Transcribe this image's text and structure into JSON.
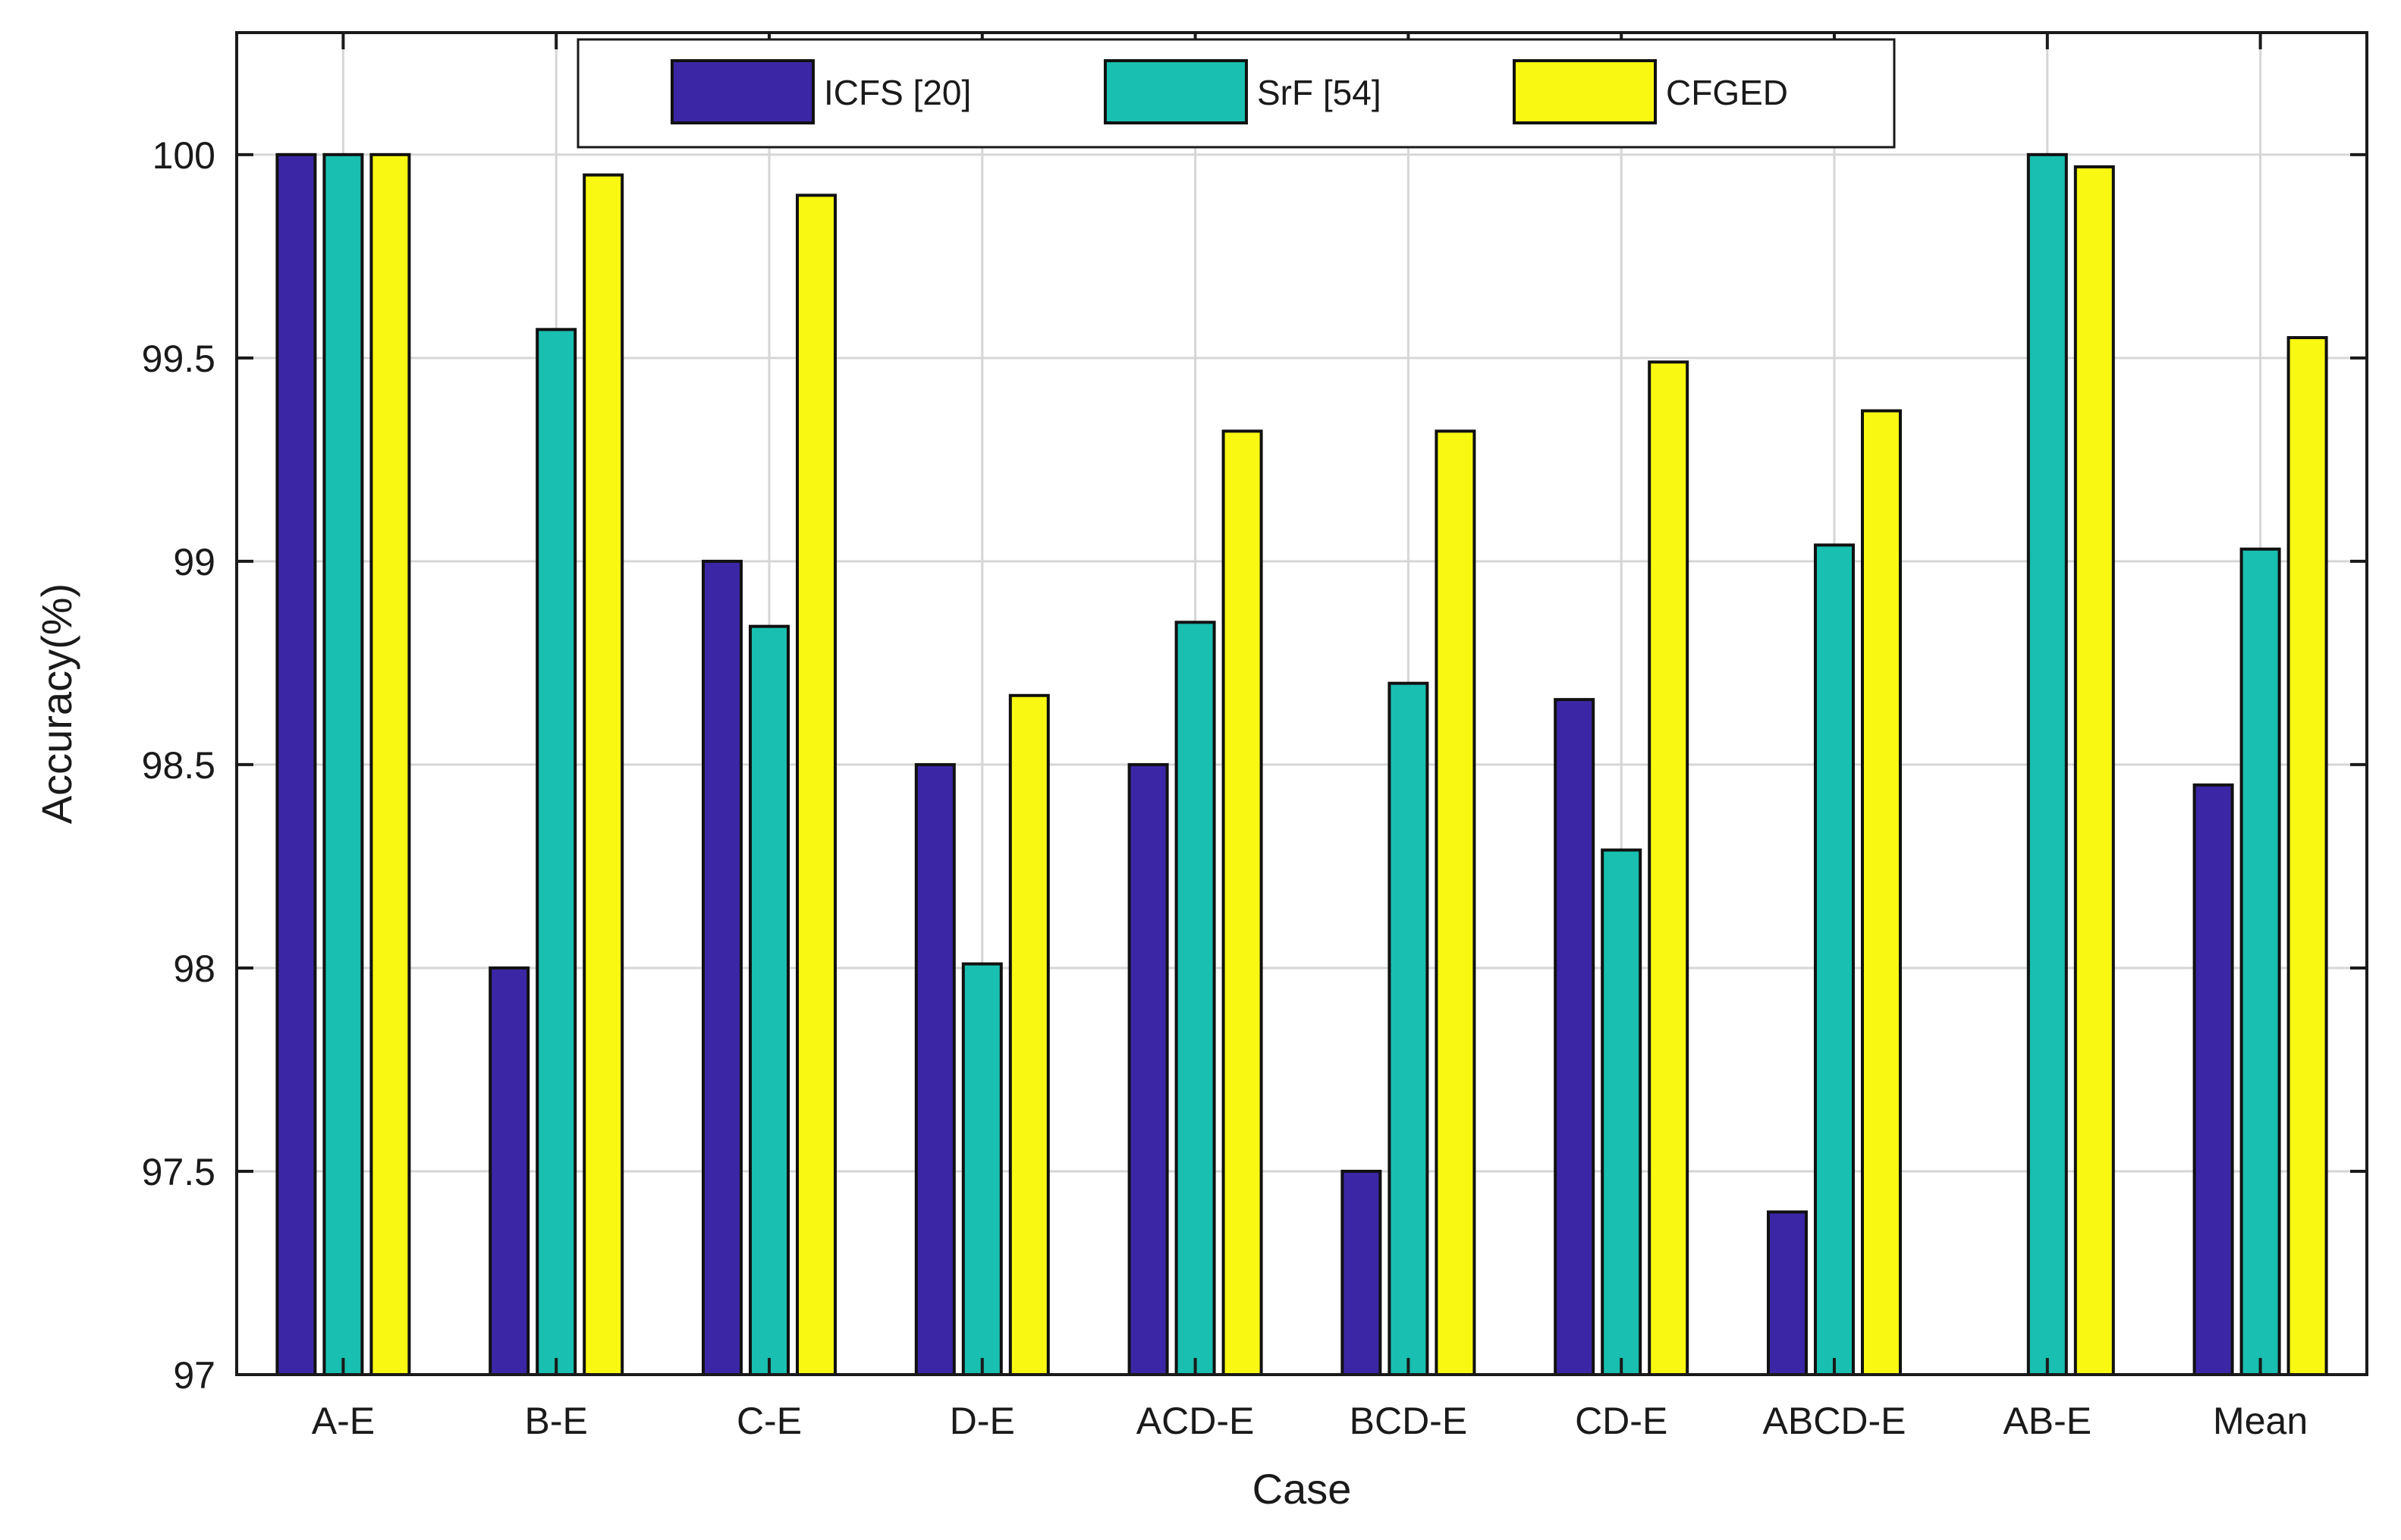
{
  "chart_data": {
    "type": "bar",
    "title": "",
    "xlabel": "Case",
    "ylabel": "Accuracy(%)",
    "ylim": [
      97,
      100.3
    ],
    "yticks": [
      "97",
      "97.5",
      "98",
      "98.5",
      "99",
      "99.5",
      "100"
    ],
    "ytick_values": [
      97,
      97.5,
      98,
      98.5,
      99,
      99.5,
      100
    ],
    "grid": true,
    "legend_position": "top",
    "categories": [
      "A-E",
      "B-E",
      "C-E",
      "D-E",
      "ACD-E",
      "BCD-E",
      "CD-E",
      "ABCD-E",
      "AB-E",
      "Mean"
    ],
    "series": [
      {
        "name": "ICFS [20]",
        "color": "#3b27a6",
        "values": [
          100,
          98,
          99,
          98.5,
          98.5,
          97.5,
          98.66,
          97.4,
          97,
          98.45
        ]
      },
      {
        "name": "SrF [54]",
        "color": "#19bfb0",
        "values": [
          100,
          99.57,
          98.84,
          98.01,
          98.85,
          98.7,
          98.29,
          99.04,
          100,
          99.03
        ]
      },
      {
        "name": "CFGED",
        "color": "#f8f812",
        "values": [
          100,
          99.95,
          99.9,
          98.67,
          99.32,
          99.32,
          99.49,
          99.37,
          99.97,
          99.55
        ]
      }
    ]
  }
}
